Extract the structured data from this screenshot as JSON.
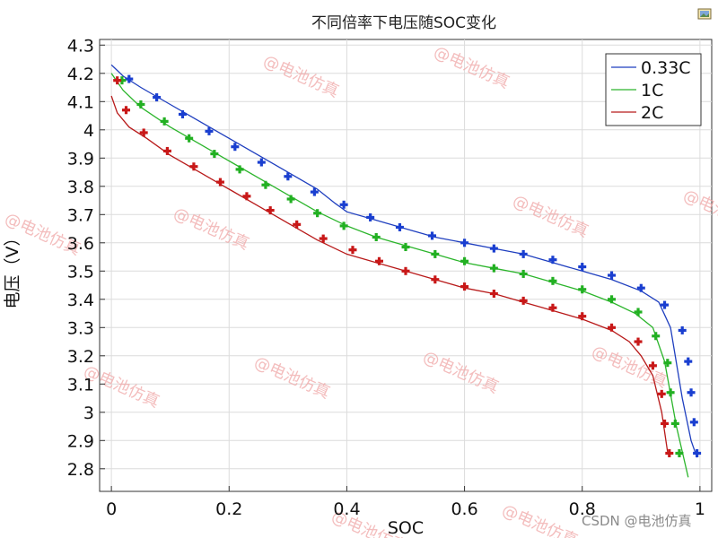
{
  "chart_data": {
    "type": "line",
    "title": "不同倍率下电压随SOC变化",
    "xlabel": "SOC",
    "ylabel": "电压（V）",
    "xlim": [
      -0.02,
      1.02
    ],
    "ylim": [
      2.72,
      4.32
    ],
    "x_ticks": [
      0,
      0.2,
      0.4,
      0.6,
      0.8,
      1
    ],
    "x_tick_labels": [
      "0",
      "0.2",
      "0.4",
      "0.6",
      "0.8",
      "1"
    ],
    "y_ticks": [
      2.8,
      2.9,
      3.0,
      3.1,
      3.2,
      3.3,
      3.4,
      3.5,
      3.6,
      3.7,
      3.8,
      3.9,
      4.0,
      4.1,
      4.2,
      4.3
    ],
    "y_tick_labels": [
      "2.8",
      "2.9",
      "3",
      "3.1",
      "3.2",
      "3.3",
      "3.4",
      "3.5",
      "3.6",
      "3.7",
      "3.8",
      "3.9",
      "4",
      "4.1",
      "4.2",
      "4.3"
    ],
    "grid": true,
    "legend_position": "top-right",
    "series": [
      {
        "name": "0.33C",
        "color": "#1f3fbf",
        "marker_color": "#1a3fd0",
        "line": [
          [
            0.0,
            4.23
          ],
          [
            0.02,
            4.19
          ],
          [
            0.05,
            4.15
          ],
          [
            0.1,
            4.09
          ],
          [
            0.15,
            4.03
          ],
          [
            0.2,
            3.97
          ],
          [
            0.25,
            3.91
          ],
          [
            0.3,
            3.85
          ],
          [
            0.35,
            3.79
          ],
          [
            0.38,
            3.74
          ],
          [
            0.4,
            3.71
          ],
          [
            0.45,
            3.68
          ],
          [
            0.5,
            3.65
          ],
          [
            0.55,
            3.62
          ],
          [
            0.6,
            3.6
          ],
          [
            0.65,
            3.58
          ],
          [
            0.7,
            3.56
          ],
          [
            0.75,
            3.53
          ],
          [
            0.8,
            3.5
          ],
          [
            0.85,
            3.47
          ],
          [
            0.9,
            3.43
          ],
          [
            0.93,
            3.39
          ],
          [
            0.95,
            3.3
          ],
          [
            0.97,
            3.05
          ],
          [
            0.985,
            2.9
          ],
          [
            0.995,
            2.84
          ]
        ],
        "markers": [
          [
            0.03,
            4.18
          ],
          [
            0.077,
            4.115
          ],
          [
            0.121,
            4.055
          ],
          [
            0.166,
            3.995
          ],
          [
            0.21,
            3.94
          ],
          [
            0.255,
            3.885
          ],
          [
            0.3,
            3.835
          ],
          [
            0.345,
            3.78
          ],
          [
            0.395,
            3.735
          ],
          [
            0.44,
            3.69
          ],
          [
            0.49,
            3.655
          ],
          [
            0.545,
            3.625
          ],
          [
            0.6,
            3.6
          ],
          [
            0.65,
            3.58
          ],
          [
            0.7,
            3.56
          ],
          [
            0.75,
            3.54
          ],
          [
            0.8,
            3.515
          ],
          [
            0.85,
            3.485
          ],
          [
            0.9,
            3.44
          ],
          [
            0.94,
            3.38
          ],
          [
            0.97,
            3.29
          ],
          [
            0.98,
            3.18
          ],
          [
            0.985,
            3.07
          ],
          [
            0.99,
            2.965
          ],
          [
            0.995,
            2.855
          ]
        ]
      },
      {
        "name": "1C",
        "color": "#2cb52c",
        "marker_color": "#22b022",
        "line": [
          [
            0.0,
            4.2
          ],
          [
            0.02,
            4.14
          ],
          [
            0.05,
            4.08
          ],
          [
            0.1,
            4.01
          ],
          [
            0.15,
            3.95
          ],
          [
            0.2,
            3.89
          ],
          [
            0.25,
            3.83
          ],
          [
            0.3,
            3.77
          ],
          [
            0.35,
            3.71
          ],
          [
            0.4,
            3.66
          ],
          [
            0.45,
            3.62
          ],
          [
            0.5,
            3.59
          ],
          [
            0.55,
            3.56
          ],
          [
            0.6,
            3.53
          ],
          [
            0.65,
            3.51
          ],
          [
            0.7,
            3.49
          ],
          [
            0.75,
            3.46
          ],
          [
            0.8,
            3.43
          ],
          [
            0.85,
            3.39
          ],
          [
            0.89,
            3.35
          ],
          [
            0.92,
            3.3
          ],
          [
            0.94,
            3.18
          ],
          [
            0.96,
            2.95
          ],
          [
            0.98,
            2.77
          ]
        ],
        "markers": [
          [
            0.018,
            4.175
          ],
          [
            0.05,
            4.09
          ],
          [
            0.09,
            4.03
          ],
          [
            0.132,
            3.97
          ],
          [
            0.175,
            3.915
          ],
          [
            0.218,
            3.86
          ],
          [
            0.262,
            3.805
          ],
          [
            0.305,
            3.755
          ],
          [
            0.35,
            3.705
          ],
          [
            0.395,
            3.66
          ],
          [
            0.45,
            3.62
          ],
          [
            0.5,
            3.585
          ],
          [
            0.55,
            3.56
          ],
          [
            0.6,
            3.535
          ],
          [
            0.65,
            3.51
          ],
          [
            0.7,
            3.49
          ],
          [
            0.75,
            3.465
          ],
          [
            0.8,
            3.435
          ],
          [
            0.85,
            3.4
          ],
          [
            0.895,
            3.355
          ],
          [
            0.925,
            3.27
          ],
          [
            0.945,
            3.175
          ],
          [
            0.95,
            3.07
          ],
          [
            0.958,
            2.96
          ],
          [
            0.965,
            2.855
          ]
        ]
      },
      {
        "name": "2C",
        "color": "#b81a1a",
        "marker_color": "#c81818",
        "line": [
          [
            0.0,
            4.12
          ],
          [
            0.01,
            4.06
          ],
          [
            0.03,
            4.01
          ],
          [
            0.06,
            3.97
          ],
          [
            0.1,
            3.91
          ],
          [
            0.15,
            3.85
          ],
          [
            0.2,
            3.79
          ],
          [
            0.25,
            3.73
          ],
          [
            0.3,
            3.67
          ],
          [
            0.35,
            3.61
          ],
          [
            0.4,
            3.56
          ],
          [
            0.45,
            3.53
          ],
          [
            0.5,
            3.5
          ],
          [
            0.55,
            3.47
          ],
          [
            0.6,
            3.44
          ],
          [
            0.65,
            3.42
          ],
          [
            0.7,
            3.39
          ],
          [
            0.75,
            3.36
          ],
          [
            0.8,
            3.33
          ],
          [
            0.85,
            3.29
          ],
          [
            0.88,
            3.25
          ],
          [
            0.9,
            3.2
          ],
          [
            0.92,
            3.13
          ],
          [
            0.935,
            3.0
          ],
          [
            0.945,
            2.86
          ]
        ],
        "markers": [
          [
            0.01,
            4.175
          ],
          [
            0.025,
            4.07
          ],
          [
            0.055,
            3.99
          ],
          [
            0.095,
            3.925
          ],
          [
            0.14,
            3.87
          ],
          [
            0.185,
            3.815
          ],
          [
            0.23,
            3.765
          ],
          [
            0.27,
            3.715
          ],
          [
            0.315,
            3.665
          ],
          [
            0.36,
            3.615
          ],
          [
            0.41,
            3.575
          ],
          [
            0.455,
            3.535
          ],
          [
            0.5,
            3.5
          ],
          [
            0.55,
            3.47
          ],
          [
            0.6,
            3.445
          ],
          [
            0.65,
            3.42
          ],
          [
            0.7,
            3.395
          ],
          [
            0.75,
            3.37
          ],
          [
            0.8,
            3.34
          ],
          [
            0.85,
            3.3
          ],
          [
            0.895,
            3.25
          ],
          [
            0.92,
            3.165
          ],
          [
            0.935,
            3.065
          ],
          [
            0.94,
            2.96
          ],
          [
            0.948,
            2.855
          ]
        ]
      }
    ]
  },
  "watermark_text": "@电池仿真",
  "credit_text": "CSDN @电池仿真",
  "corner_icon": "image-icon"
}
